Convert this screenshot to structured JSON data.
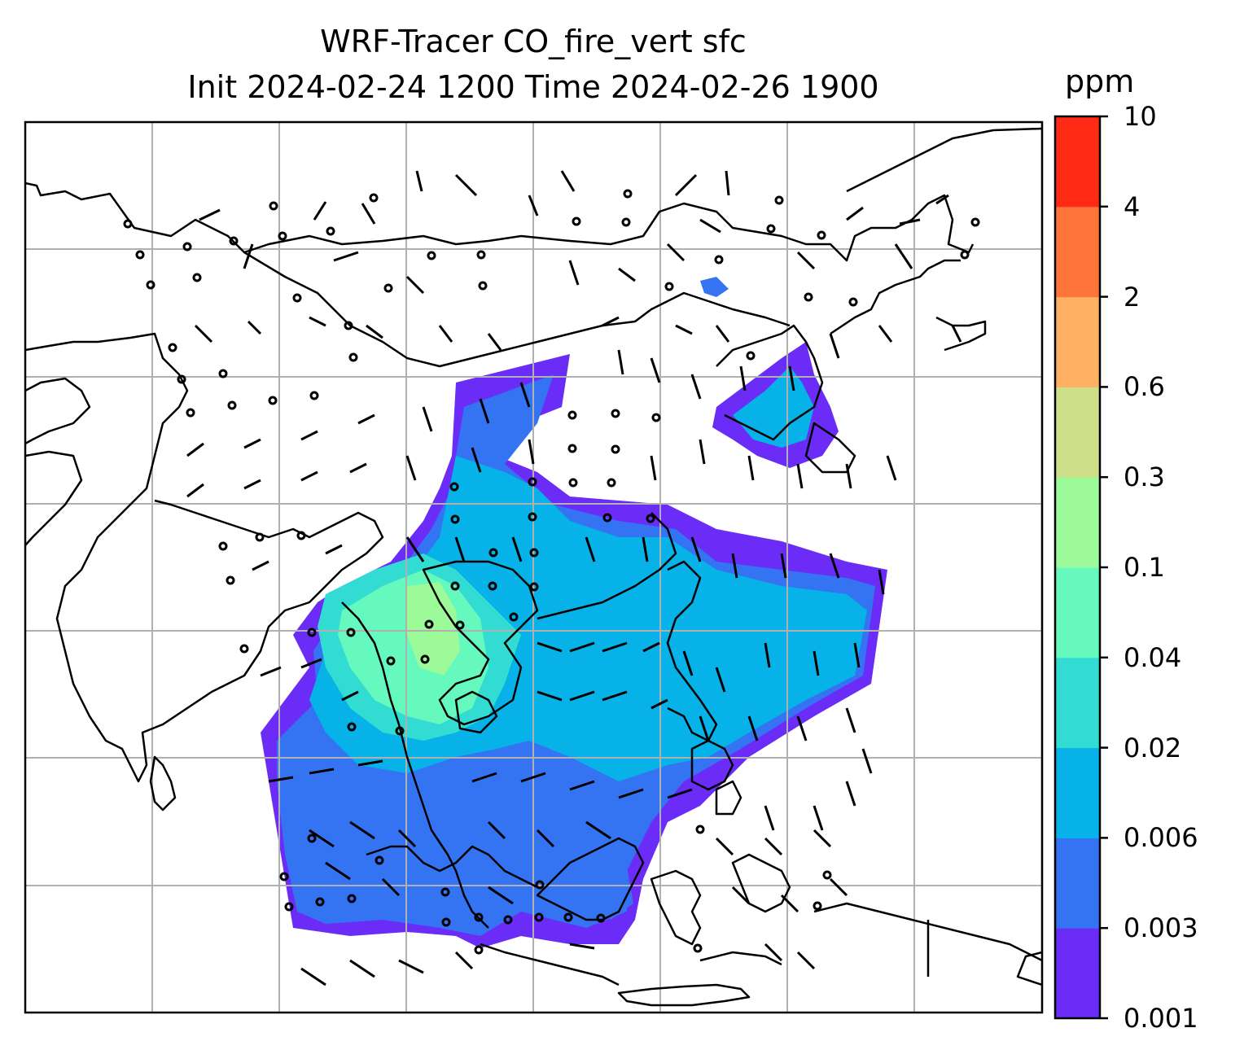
{
  "title": {
    "line1": "WRF-Tracer CO_fire_vert sfc",
    "line2": "Init 2024-02-24 1200 Time 2024-02-26 1900"
  },
  "colorbar": {
    "unit": "ppm",
    "levels": [
      "0.001",
      "0.003",
      "0.006",
      "0.02",
      "0.04",
      "0.1",
      "0.3",
      "0.6",
      "2",
      "4",
      "10"
    ],
    "colors": [
      "#6a2cf6",
      "#3474f3",
      "#06b2e8",
      "#32dcd3",
      "#66f9bd",
      "#9cfa99",
      "#cde089",
      "#ffb063",
      "#ff7539",
      "#ff2a14"
    ]
  },
  "map": {
    "content": "coastlines, lat/lon grid, wind barbs and calm-wind circles",
    "gridlines": true,
    "plume_colors_used": [
      "#6a2cf6",
      "#3474f3",
      "#06b2e8",
      "#32dcd3",
      "#66f9bd",
      "#9cfa99"
    ]
  }
}
